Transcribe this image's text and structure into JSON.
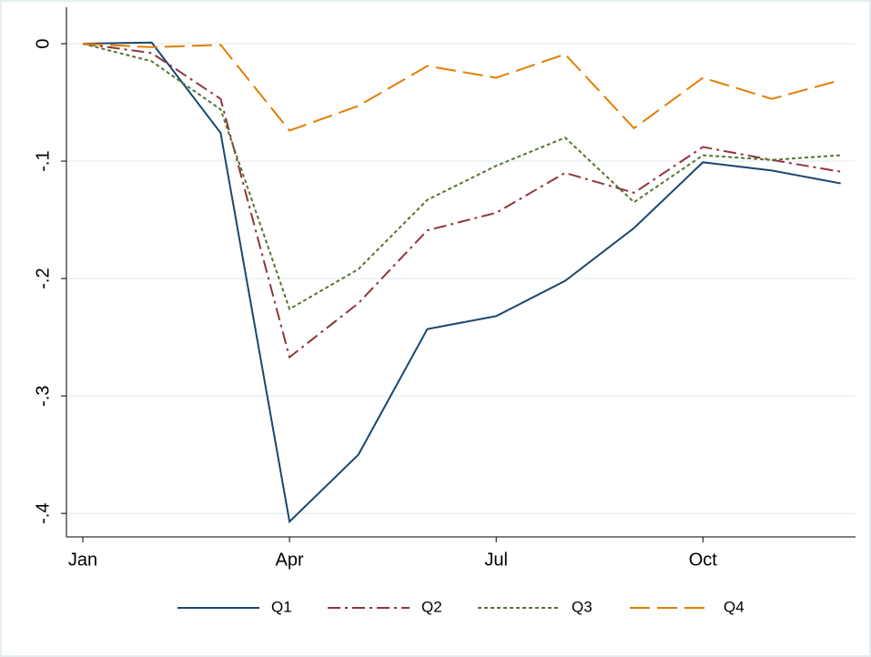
{
  "chart_data": {
    "type": "line",
    "categories": [
      "Jan",
      null,
      null,
      "Apr",
      null,
      null,
      "Jul",
      null,
      null,
      "Oct",
      null,
      null
    ],
    "series": [
      {
        "name": "Q1",
        "color": "#1a476f",
        "dash": "solid",
        "values": [
          0,
          0.001,
          -0.076,
          -0.407,
          -0.35,
          -0.243,
          -0.232,
          -0.202,
          -0.157,
          -0.101,
          -0.108,
          -0.119
        ]
      },
      {
        "name": "Q2",
        "color": "#90353b",
        "dash": "dashdot",
        "values": [
          0,
          -0.008,
          -0.047,
          -0.267,
          -0.221,
          -0.159,
          -0.144,
          -0.11,
          -0.127,
          -0.088,
          -0.099,
          -0.109
        ]
      },
      {
        "name": "Q3",
        "color": "#55752f",
        "dash": "dot",
        "values": [
          0,
          -0.015,
          -0.056,
          -0.226,
          -0.192,
          -0.133,
          -0.104,
          -0.08,
          -0.135,
          -0.095,
          -0.099,
          -0.095
        ]
      },
      {
        "name": "Q4",
        "color": "#e37e00",
        "dash": "longdash",
        "values": [
          0,
          -0.003,
          -0.001,
          -0.074,
          -0.053,
          -0.019,
          -0.029,
          -0.009,
          -0.072,
          -0.029,
          -0.047,
          -0.031
        ]
      }
    ],
    "ylim": [
      -0.42,
      0.031
    ],
    "yticks": [
      0,
      {
        "value": -0.1,
        "label": "-.1"
      },
      {
        "value": -0.2,
        "label": "-.2"
      },
      {
        "value": -0.3,
        "label": "-.3"
      },
      {
        "value": -0.4,
        "label": "-.4"
      }
    ],
    "grid": true,
    "legend": "bottom"
  }
}
